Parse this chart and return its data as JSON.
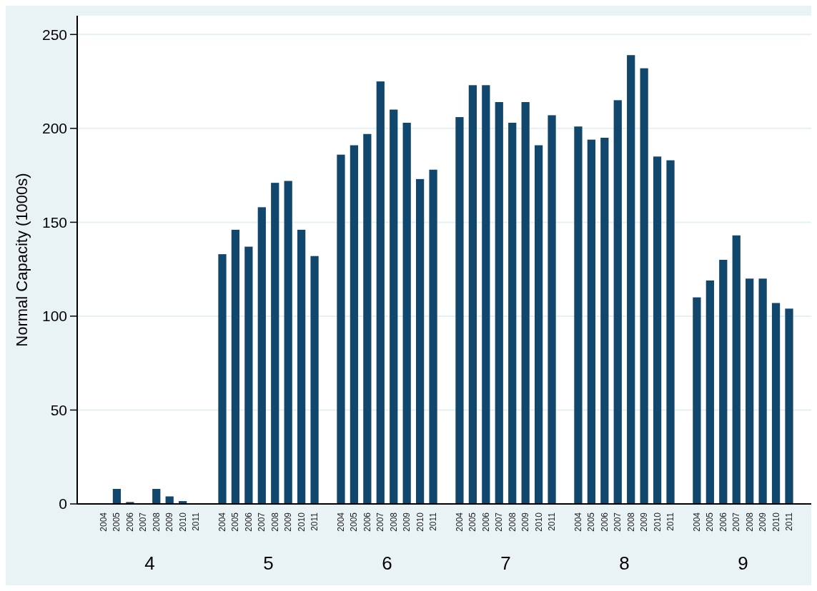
{
  "chart_data": {
    "type": "bar",
    "ylabel": "Normal Capacity (1000s)",
    "categories": [
      "2004",
      "2005",
      "2006",
      "2007",
      "2008",
      "2009",
      "2010",
      "2011",
      null,
      "2004",
      "2005",
      "2006",
      "2007",
      "2008",
      "2009",
      "2010",
      "2011",
      null,
      "2004",
      "2005",
      "2006",
      "2007",
      "2008",
      "2009",
      "2010",
      "2011",
      null,
      "2004",
      "2005",
      "2006",
      "2007",
      "2008",
      "2009",
      "2010",
      "2011",
      null,
      "2004",
      "2005",
      "2006",
      "2007",
      "2008",
      "2009",
      "2010",
      "2011",
      null,
      "2004",
      "2005",
      "2006",
      "2007",
      "2008",
      "2009",
      "2010",
      "2011"
    ],
    "values": [
      0,
      8,
      1,
      0,
      8,
      4,
      1.5,
      0,
      null,
      133,
      146,
      137,
      158,
      171,
      172,
      146,
      132,
      null,
      186,
      191,
      197,
      225,
      210,
      203,
      173,
      178,
      null,
      206,
      223,
      223,
      214,
      203,
      214,
      191,
      207,
      null,
      201,
      194,
      195,
      215,
      239,
      232,
      185,
      183,
      null,
      110,
      119,
      130,
      143,
      120,
      120,
      107,
      104
    ],
    "color": "#12476d",
    "ylim": [
      0,
      260
    ],
    "yticks": [
      0,
      50,
      100,
      150,
      200,
      250
    ],
    "grid": "y",
    "annotations": [
      "4",
      "5",
      "6",
      "7",
      "8",
      "9"
    ]
  }
}
